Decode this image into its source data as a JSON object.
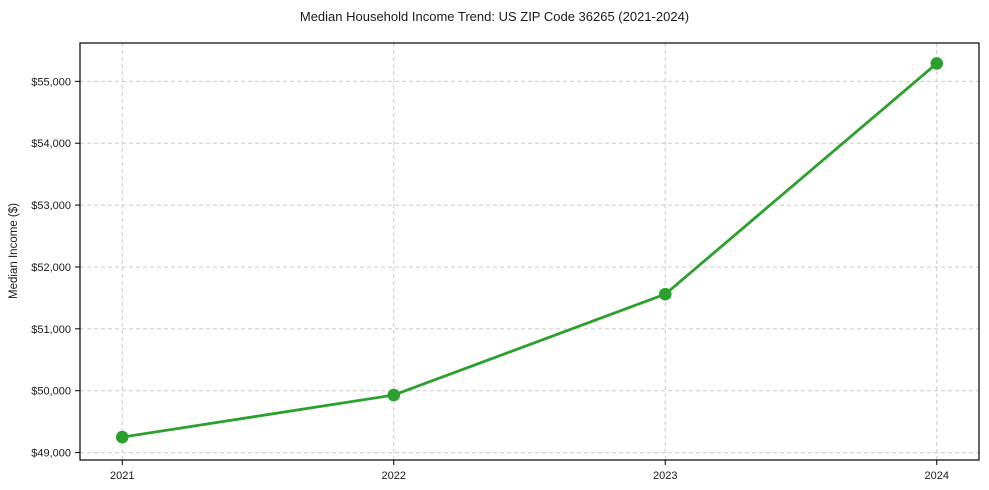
{
  "chart_data": {
    "type": "line",
    "title": "Median Household Income Trend: US ZIP Code 36265 (2021-2024)",
    "xlabel": "",
    "ylabel": "Median Income ($)",
    "x": [
      "2021",
      "2022",
      "2023",
      "2024"
    ],
    "series": [
      {
        "name": "Median Household Income",
        "values": [
          49250,
          49930,
          51560,
          55290
        ]
      }
    ],
    "yticks": [
      49000,
      50000,
      51000,
      52000,
      53000,
      54000,
      55000
    ],
    "ytick_labels": [
      "$49,000",
      "$50,000",
      "$51,000",
      "$52,000",
      "$53,000",
      "$54,000",
      "$55,000"
    ],
    "ylim": [
      48880,
      55620
    ],
    "grid": true,
    "legend": false,
    "colors": {
      "line": "#2ca02c",
      "marker": "#2ca02c",
      "grid": "#cccccc",
      "axis": "#000000",
      "text": "#1a1a1a",
      "background": "#ffffff"
    }
  }
}
